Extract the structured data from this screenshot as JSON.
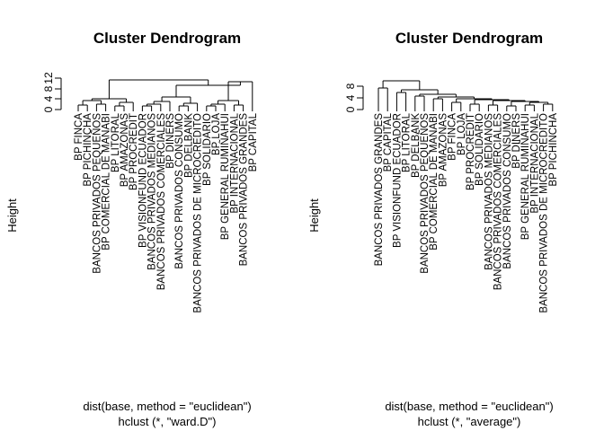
{
  "chart_data": [
    {
      "type": "dendrogram",
      "title": "Cluster Dendrogram",
      "ylabel": "Height",
      "xlabel_line1": "dist(base, method = \"euclidean\")",
      "xlabel_line2": "hclust (*, \"ward.D\")",
      "y_ticks": [
        "0",
        "4",
        "8",
        "12"
      ],
      "ylim": [
        0,
        14
      ],
      "leaves": [
        "BP FINCA",
        "BP PICHINCHA",
        "BANCOS PRIVADOS PEQUEÑOS",
        "BP COMERCIAL DE MANABI",
        "BP LITORAL",
        "BP AMAZONAS",
        "BP PROCREDIT",
        "BP VISIONFUND ECUADOR",
        "BANCOS PRIVADOS MEDIANOS",
        "BANCOS PRIVADOS COMERCIALES",
        "BP DINERS",
        "BANCOS PRIVADOS CONSUMO",
        "BP DELBANK",
        "BANCOS PRIVADOS DE MICROCREDITO",
        "BP SOLIDARIO",
        "BP LOJA",
        "BP GENERAL RUMIÑAHUI",
        "BP INTERNACIONAL",
        "BANCOS PRIVADOS GRANDES",
        "BP CAPITAL"
      ]
    },
    {
      "type": "dendrogram",
      "title": "Cluster Dendrogram",
      "ylabel": "Height",
      "xlabel_line1": "dist(base, method = \"euclidean\")",
      "xlabel_line2": "hclust (*, \"average\")",
      "y_ticks": [
        "0",
        "4",
        "8"
      ],
      "ylim": [
        0,
        9
      ],
      "leaves": [
        "BANCOS PRIVADOS GRANDES",
        "BP CAPITAL",
        "BP VISIONFUND ECUADOR",
        "BP LITORAL",
        "BP DELBANK",
        "BANCOS PRIVADOS PEQUEÑOS",
        "BP COMERCIAL DE MANABI",
        "BP AMAZONAS",
        "BP FINCA",
        "BP LOJA",
        "BP PROCREDIT",
        "BP SOLIDARIO",
        "BANCOS PRIVADOS MEDIANOS",
        "BANCOS PRIVADOS COMERCIALES",
        "BANCOS PRIVADOS CONSUMO",
        "BP DINERS",
        "BP GENERAL RUMIÑAHUI",
        "BP INTERNACIONAL",
        "BANCOS PRIVADOS DE MICROCREDITO",
        "BP PICHINCHA"
      ]
    }
  ]
}
